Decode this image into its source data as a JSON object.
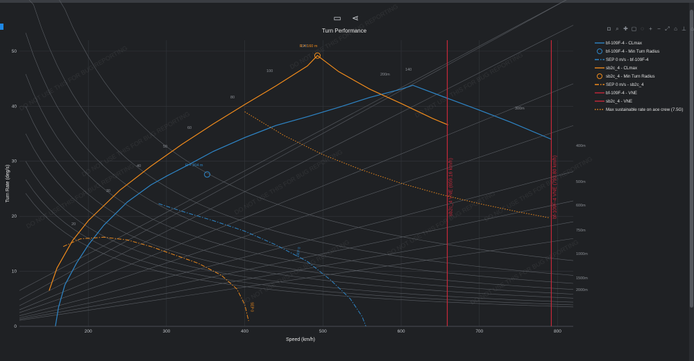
{
  "toolbar": {
    "icons": [
      "table-icon",
      "share-icon"
    ]
  },
  "modebar": {
    "icons": [
      "camera-icon",
      "zoom-icon",
      "pan-icon",
      "box-select-icon",
      "lasso-icon",
      "zoom-in-icon",
      "zoom-out-icon",
      "autoscale-icon",
      "reset-axes-icon",
      "spike-icon",
      "home-icon",
      "compare-icon"
    ]
  },
  "chart_data": {
    "type": "line",
    "title": "Turn Performance",
    "xlabel": "Speed (km/h)",
    "ylabel": "Turn Rate (deg/s)",
    "xlim": [
      112,
      820
    ],
    "ylim": [
      0,
      52
    ],
    "xticks": [
      200,
      300,
      400,
      500,
      600,
      700,
      800
    ],
    "yticks": [
      0,
      10,
      20,
      30,
      40,
      50
    ],
    "grid": true,
    "legend_position": "right",
    "watermark": "DO NOT USE THIS FOR BUG REPORTING",
    "series": [
      {
        "name": "bf-109F-4 - CLmax",
        "color": "#2e86c8",
        "style": "solid",
        "x": [
          158,
          162,
          170,
          185,
          200,
          220,
          250,
          280,
          300,
          330,
          360,
          400,
          440,
          480,
          520,
          560,
          600,
          615,
          660,
          700,
          740,
          792
        ],
        "y": [
          0,
          3.5,
          7.5,
          11.5,
          14.8,
          18.4,
          22.6,
          25.7,
          27.3,
          29.5,
          31.8,
          34.3,
          36.5,
          38.1,
          39.8,
          41.6,
          43.1,
          43.8,
          41.4,
          39.3,
          37.1,
          34.0
        ]
      },
      {
        "name": "bf-109F-4 - Min Turn Radius",
        "color": "#2e86c8",
        "marker": "circle",
        "x": [
          352
        ],
        "y": [
          27.6
        ],
        "annotation": "R = 204 m"
      },
      {
        "name": "SEP 0 m/s - bf-109F-4",
        "color": "#2e86c8",
        "style": "dashdot",
        "x": [
          290,
          320,
          360,
          400,
          440,
          480,
          510,
          535,
          550,
          555
        ],
        "y": [
          22.3,
          20.9,
          19.2,
          17.3,
          14.8,
          11.8,
          8.4,
          5.0,
          1.8,
          0
        ],
        "label": "SEP 0"
      },
      {
        "name": "sb2c_4 - CLmax",
        "color": "#f28c1c",
        "style": "solid",
        "x": [
          150,
          160,
          180,
          200,
          240,
          280,
          320,
          360,
          400,
          440,
          480,
          493,
          520,
          560,
          600,
          640,
          660
        ],
        "y": [
          6.5,
          10.6,
          15.6,
          19.2,
          24.7,
          29.1,
          33.1,
          36.8,
          40.3,
          43.7,
          47.3,
          49.2,
          46.3,
          43.1,
          40.5,
          37.8,
          36.6
        ]
      },
      {
        "name": "sb2c_4 - Min Turn Radius",
        "color": "#f28c1c",
        "marker": "circle",
        "x": [
          493
        ],
        "y": [
          49.2
        ],
        "annotation": "R = 160 m"
      },
      {
        "name": "SEP 0 m/s - sb2c_4",
        "color": "#f28c1c",
        "style": "dashdot",
        "x": [
          168,
          190,
          220,
          250,
          280,
          310,
          340,
          370,
          390,
          400,
          405
        ],
        "y": [
          14.5,
          15.9,
          16.2,
          15.7,
          14.5,
          13.0,
          11.5,
          9.3,
          6.8,
          4.0,
          1.0
        ],
        "label": "SEP 0"
      },
      {
        "name": "bf-109F-4 - VNE",
        "color": "#c8283a",
        "style": "solid",
        "x": [
          792,
          792
        ],
        "y": [
          0,
          52
        ],
        "label": "bf-109F-4 VNE (793.80 km/h)"
      },
      {
        "name": "sb2c_4 - VNE",
        "color": "#c8283a",
        "style": "solid",
        "x": [
          659,
          659
        ],
        "y": [
          0,
          52
        ],
        "label": "sb2c_4 VNE (659.16 km/h)"
      },
      {
        "name": "Max sustainable rate on ace crew (7.5G)",
        "color": "#f28c1c",
        "style": "dotted",
        "x": [
          400,
          450,
          500,
          550,
          600,
          650,
          700,
          750,
          790
        ],
        "y": [
          39.0,
          34.7,
          31.2,
          28.4,
          26.0,
          24.0,
          22.3,
          20.8,
          19.7
        ]
      }
    ],
    "isolines_radius": {
      "labels": [
        "20",
        "30",
        "40",
        "50",
        "60",
        "80",
        "100",
        "120",
        "140"
      ]
    },
    "isolines_load": {
      "labels": [
        "200m",
        "300m",
        "400m",
        "500m",
        "600m",
        "750m",
        "1000m",
        "1500m",
        "2000m"
      ]
    }
  }
}
